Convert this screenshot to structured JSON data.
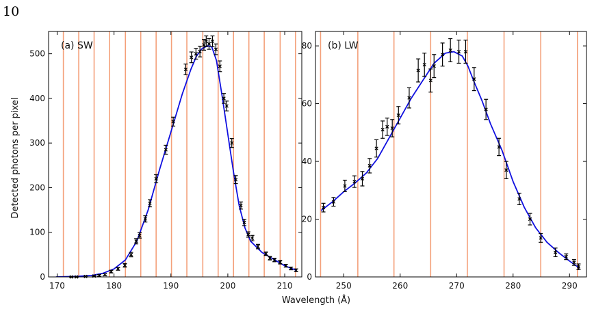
{
  "page_number": "10",
  "figure": {
    "ylabel": "Detected photons per pixel",
    "xlabel": "Wavelength (Å)"
  },
  "colors": {
    "curve": "#1010e0",
    "points": "#000000",
    "bands": "#f4a07a"
  },
  "chart_data": [
    {
      "type": "scatter",
      "title": "(a) SW",
      "xlim": [
        168.5,
        213
      ],
      "ylim": [
        0,
        550
      ],
      "xticks": [
        170,
        180,
        190,
        200,
        210
      ],
      "yticks": [
        0,
        100,
        200,
        300,
        400,
        500
      ],
      "band_lines": [
        171.1,
        173.8,
        176.5,
        179.2,
        182.0,
        184.7,
        187.4,
        190.1,
        192.8,
        195.6,
        198.3,
        201.0,
        203.7,
        206.4,
        209.2,
        211.9
      ],
      "curve": {
        "x": [
          169.8,
          173,
          176,
          178,
          180,
          182,
          184,
          186,
          188,
          190,
          192,
          193.5,
          194.5,
          195.5,
          196.5,
          197.2,
          198,
          199,
          200,
          201,
          202,
          203,
          204,
          206,
          208,
          210,
          212
        ],
        "y": [
          0,
          1,
          3,
          8,
          18,
          38,
          80,
          150,
          240,
          325,
          410,
          465,
          495,
          512,
          518,
          515,
          485,
          405,
          320,
          235,
          160,
          110,
          80,
          55,
          40,
          25,
          15
        ]
      },
      "points": {
        "x": [
          172.5,
          173.4,
          175.0,
          176.5,
          177.4,
          178.4,
          179.5,
          180.7,
          181.9,
          183.0,
          183.9,
          184.5,
          185.5,
          186.3,
          187.4,
          189.1,
          190.4,
          192.6,
          193.6,
          194.4,
          195.1,
          195.8,
          196.2,
          196.7,
          197.3,
          197.9,
          198.6,
          199.3,
          199.8,
          200.7,
          201.4,
          202.3,
          202.9,
          203.6,
          204.3,
          205.3,
          206.7,
          207.4,
          208.2,
          209.2,
          210.2,
          211.1,
          212.0
        ],
        "y": [
          0,
          0,
          1,
          2,
          3,
          5,
          12,
          18,
          26,
          50,
          80,
          93,
          130,
          165,
          220,
          285,
          348,
          465,
          492,
          500,
          505,
          520,
          528,
          522,
          528,
          510,
          472,
          400,
          383,
          300,
          218,
          160,
          122,
          95,
          87,
          68,
          52,
          42,
          38,
          33,
          25,
          19,
          15
        ],
        "err": [
          1,
          1,
          1,
          1,
          2,
          2,
          3,
          3,
          4,
          5,
          6,
          6,
          7,
          8,
          9,
          10,
          10,
          12,
          12,
          12,
          12,
          12,
          12,
          12,
          12,
          12,
          12,
          11,
          11,
          10,
          9,
          8,
          7,
          6,
          6,
          5,
          4,
          4,
          4,
          4,
          3,
          3,
          3
        ]
      }
    },
    {
      "type": "scatter",
      "title": "(b) LW",
      "xlim": [
        245,
        293
      ],
      "ylim": [
        0,
        85
      ],
      "xticks": [
        250,
        260,
        270,
        280,
        290
      ],
      "yticks": [
        0,
        20,
        40,
        60,
        80
      ],
      "band_lines": [
        245.9,
        252.5,
        258.9,
        265.4,
        271.9,
        278.4,
        284.9,
        291.4
      ],
      "curve": {
        "x": [
          246,
          248,
          250,
          252,
          254,
          256,
          258,
          260,
          262,
          264,
          266,
          268,
          269.5,
          271,
          272,
          273,
          274.5,
          276,
          278,
          280,
          282,
          284,
          286,
          288,
          290,
          291.8
        ],
        "y": [
          23,
          26,
          29.5,
          32.5,
          36,
          41,
          48,
          55,
          62,
          68,
          74,
          77.5,
          78,
          76.5,
          73,
          68,
          61,
          53,
          44,
          33,
          24,
          17,
          12,
          8.5,
          5.5,
          3
        ]
      },
      "points": {
        "x": [
          246.4,
          248.2,
          250.2,
          251.9,
          253.3,
          254.6,
          255.8,
          256.9,
          257.7,
          258.6,
          259.7,
          261.6,
          263.2,
          264.3,
          265.4,
          266.0,
          267.5,
          268.9,
          270.4,
          271.6,
          273.1,
          275.2,
          277.5,
          278.8,
          281.1,
          283.0,
          284.9,
          287.5,
          289.4,
          290.8,
          291.6
        ],
        "y": [
          24,
          26,
          31.5,
          33,
          34,
          38.5,
          44.5,
          51,
          52,
          51.5,
          56,
          62,
          71.5,
          73.5,
          68,
          73,
          77,
          78.5,
          78,
          78,
          68.5,
          58,
          45,
          37,
          27,
          20,
          13.5,
          8.5,
          7,
          5,
          3.5
        ],
        "err": [
          1.5,
          1.5,
          2,
          2,
          2.5,
          2.5,
          3,
          3,
          3,
          3,
          3,
          3.5,
          4,
          4,
          4,
          4,
          4,
          4,
          4,
          4,
          4,
          3.5,
          3,
          3,
          2,
          2,
          1.5,
          1.5,
          1,
          1,
          1
        ]
      }
    }
  ]
}
